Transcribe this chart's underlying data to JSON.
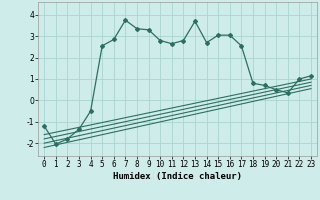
{
  "xlabel": "Humidex (Indice chaleur)",
  "bg_color": "#ceecea",
  "line_color": "#2d6e62",
  "grid_color": "#aad4cf",
  "xlim": [
    -0.5,
    23.5
  ],
  "ylim": [
    -2.6,
    4.6
  ],
  "xticks": [
    0,
    1,
    2,
    3,
    4,
    5,
    6,
    7,
    8,
    9,
    10,
    11,
    12,
    13,
    14,
    15,
    16,
    17,
    18,
    19,
    20,
    21,
    22,
    23
  ],
  "yticks": [
    -2,
    -1,
    0,
    1,
    2,
    3,
    4
  ],
  "main_x": [
    0,
    1,
    2,
    3,
    4,
    5,
    6,
    7,
    8,
    9,
    10,
    11,
    12,
    13,
    14,
    15,
    16,
    17,
    18,
    19,
    20,
    21,
    22,
    23
  ],
  "main_y": [
    -1.2,
    -2.05,
    -1.8,
    -1.35,
    -0.5,
    2.55,
    2.85,
    3.75,
    3.35,
    3.3,
    2.8,
    2.65,
    2.8,
    3.7,
    2.7,
    3.05,
    3.05,
    2.55,
    0.8,
    0.7,
    0.5,
    0.35,
    1.0,
    1.15
  ],
  "ref_lines": [
    {
      "x0": 0,
      "y0": -2.2,
      "x1": 23,
      "y1": 0.55
    },
    {
      "x0": 0,
      "y0": -2.0,
      "x1": 23,
      "y1": 0.7
    },
    {
      "x0": 0,
      "y0": -1.8,
      "x1": 23,
      "y1": 0.85
    },
    {
      "x0": 0,
      "y0": -1.6,
      "x1": 23,
      "y1": 1.0
    }
  ]
}
